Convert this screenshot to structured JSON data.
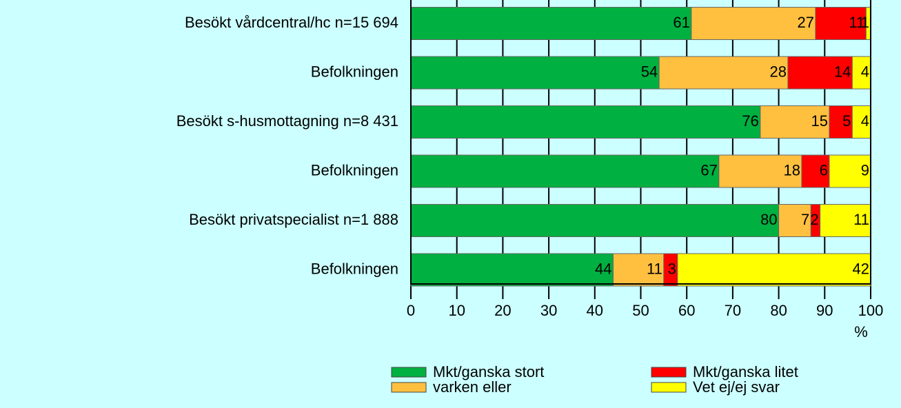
{
  "chart_data": {
    "type": "bar",
    "orientation": "horizontal",
    "stacked": true,
    "categories": [
      "Besökt vårdcentral/hc n=15 694",
      "Befolkningen",
      "Besökt s-husmottagning n=8 431",
      "Befolkningen",
      "Besökt privatspecialist n=1 888",
      "Befolkningen"
    ],
    "series": [
      {
        "name": "Mkt/ganska stort",
        "color": "#00b040",
        "values": [
          61,
          54,
          76,
          67,
          80,
          44
        ]
      },
      {
        "name": "varken eller",
        "color": "#ffc040",
        "values": [
          27,
          28,
          15,
          18,
          7,
          11
        ]
      },
      {
        "name": "Mkt/ganska litet",
        "color": "#ff0000",
        "values": [
          11,
          14,
          5,
          6,
          2,
          3
        ]
      },
      {
        "name": "Vet ej/ej svar",
        "color": "#ffff00",
        "values": [
          1,
          4,
          4,
          9,
          11,
          42
        ]
      }
    ],
    "xlim": [
      0,
      100
    ],
    "xticks": [
      0,
      10,
      20,
      30,
      40,
      50,
      60,
      70,
      80,
      90,
      100
    ],
    "xlabel": "%",
    "grid": true,
    "legend": "bottom"
  }
}
